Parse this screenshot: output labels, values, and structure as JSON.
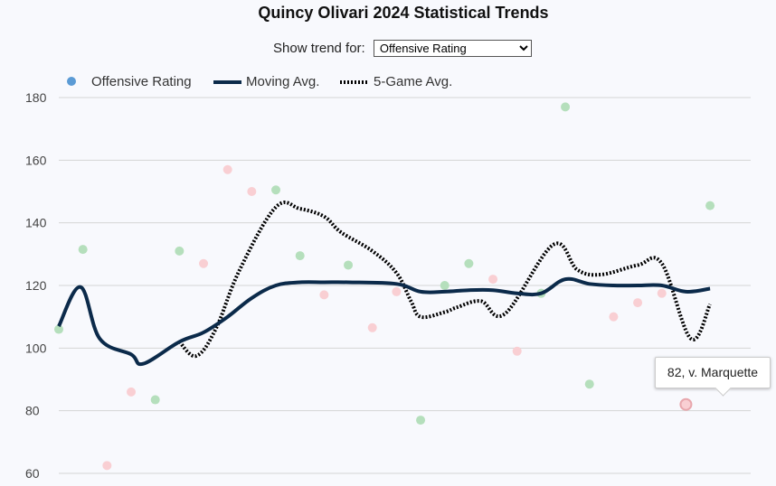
{
  "title": "Quincy Olivari 2024 Statistical Trends",
  "control": {
    "label": "Show trend for:",
    "selected": "Offensive Rating"
  },
  "legend": {
    "points_label": "Offensive Rating",
    "moving_label": "Moving Avg.",
    "five_game_label": "5-Game Avg."
  },
  "tooltip": {
    "text": "82, v. Marquette"
  },
  "colors": {
    "above": "#b5dfbc",
    "below": "#f9cfd3",
    "legend_dot": "#5b9bd5",
    "moving": "#0b2a4a",
    "five_game": "#000000",
    "grid": "#d5d5d5"
  },
  "chart_data": {
    "type": "line",
    "title": "Quincy Olivari 2024 Statistical Trends",
    "ylabel": "Offensive Rating",
    "ylim": [
      60,
      180
    ],
    "yticks": [
      60,
      80,
      100,
      120,
      140,
      160,
      180
    ],
    "x": [
      1,
      2,
      3,
      4,
      5,
      6,
      7,
      8,
      9,
      10,
      11,
      12,
      13,
      14,
      15,
      16,
      17,
      18,
      19,
      20,
      21,
      22,
      23,
      24,
      25,
      26,
      27,
      28,
      29,
      30
    ],
    "points": [
      {
        "game": 1,
        "value": 106,
        "status": "above"
      },
      {
        "game": 2,
        "value": 131.5,
        "status": "above"
      },
      {
        "game": 3,
        "value": 62.5,
        "status": "below"
      },
      {
        "game": 4,
        "value": 86,
        "status": "below"
      },
      {
        "game": 5,
        "value": 83.5,
        "status": "above"
      },
      {
        "game": 6,
        "value": 131,
        "status": "above"
      },
      {
        "game": 7,
        "value": 127,
        "status": "below"
      },
      {
        "game": 8,
        "value": 157,
        "status": "below"
      },
      {
        "game": 9,
        "value": 150,
        "status": "below"
      },
      {
        "game": 10,
        "value": 150.5,
        "status": "above"
      },
      {
        "game": 11,
        "value": 129.5,
        "status": "above"
      },
      {
        "game": 12,
        "value": 117,
        "status": "below"
      },
      {
        "game": 13,
        "value": 126.5,
        "status": "above"
      },
      {
        "game": 14,
        "value": 106.5,
        "status": "below"
      },
      {
        "game": 15,
        "value": 118,
        "status": "below"
      },
      {
        "game": 16,
        "value": 77,
        "status": "above"
      },
      {
        "game": 17,
        "value": 120,
        "status": "above"
      },
      {
        "game": 18,
        "value": 127,
        "status": "above"
      },
      {
        "game": 19,
        "value": 122,
        "status": "below"
      },
      {
        "game": 20,
        "value": 99,
        "status": "below"
      },
      {
        "game": 21,
        "value": 117.5,
        "status": "above"
      },
      {
        "game": 22,
        "value": 177,
        "status": "above"
      },
      {
        "game": 23,
        "value": 88.5,
        "status": "above"
      },
      {
        "game": 24,
        "value": 110,
        "status": "below"
      },
      {
        "game": 25,
        "value": 114.5,
        "status": "below"
      },
      {
        "game": 26,
        "value": 117.5,
        "status": "below"
      },
      {
        "game": 27,
        "value": 82,
        "status": "below"
      },
      {
        "game": 28,
        "value": 145.5,
        "status": "above"
      }
    ],
    "series": [
      {
        "name": "Moving Avg.",
        "values": [
          {
            "game": 1,
            "value": 107
          },
          {
            "game": 1.9,
            "value": 119.5
          },
          {
            "game": 2.7,
            "value": 103
          },
          {
            "game": 4,
            "value": 98
          },
          {
            "game": 4.5,
            "value": 95
          },
          {
            "game": 6,
            "value": 102
          },
          {
            "game": 7,
            "value": 105
          },
          {
            "game": 8,
            "value": 110
          },
          {
            "game": 9,
            "value": 116
          },
          {
            "game": 10,
            "value": 120
          },
          {
            "game": 11,
            "value": 121
          },
          {
            "game": 12,
            "value": 121
          },
          {
            "game": 13,
            "value": 121
          },
          {
            "game": 15,
            "value": 120.5
          },
          {
            "game": 16,
            "value": 118
          },
          {
            "game": 17,
            "value": 118
          },
          {
            "game": 18,
            "value": 118.5
          },
          {
            "game": 19,
            "value": 118.5
          },
          {
            "game": 20,
            "value": 117.5
          },
          {
            "game": 21,
            "value": 117.5
          },
          {
            "game": 22,
            "value": 122
          },
          {
            "game": 23,
            "value": 120.5
          },
          {
            "game": 24,
            "value": 120
          },
          {
            "game": 25,
            "value": 120
          },
          {
            "game": 26,
            "value": 120
          },
          {
            "game": 27,
            "value": 118
          },
          {
            "game": 28,
            "value": 119
          }
        ]
      },
      {
        "name": "5-Game Avg.",
        "values": [
          {
            "game": 6,
            "value": 102
          },
          {
            "game": 6.7,
            "value": 97.5
          },
          {
            "game": 7.5,
            "value": 106
          },
          {
            "game": 8.5,
            "value": 125
          },
          {
            "game": 10,
            "value": 145
          },
          {
            "game": 11,
            "value": 144.5
          },
          {
            "game": 12,
            "value": 142
          },
          {
            "game": 12.7,
            "value": 137
          },
          {
            "game": 14,
            "value": 131
          },
          {
            "game": 15,
            "value": 124
          },
          {
            "game": 15.6,
            "value": 115
          },
          {
            "game": 16,
            "value": 110
          },
          {
            "game": 17,
            "value": 111.5
          },
          {
            "game": 17.5,
            "value": 113
          },
          {
            "game": 18.5,
            "value": 115
          },
          {
            "game": 19.5,
            "value": 111
          },
          {
            "game": 21.5,
            "value": 133
          },
          {
            "game": 22.5,
            "value": 125
          },
          {
            "game": 23.5,
            "value": 123.5
          },
          {
            "game": 25,
            "value": 126.5
          },
          {
            "game": 26,
            "value": 127
          },
          {
            "game": 27.2,
            "value": 103
          },
          {
            "game": 28,
            "value": 114
          }
        ]
      }
    ],
    "highlight": {
      "game": 27,
      "value": 82,
      "label": "82, v. Marquette"
    }
  }
}
